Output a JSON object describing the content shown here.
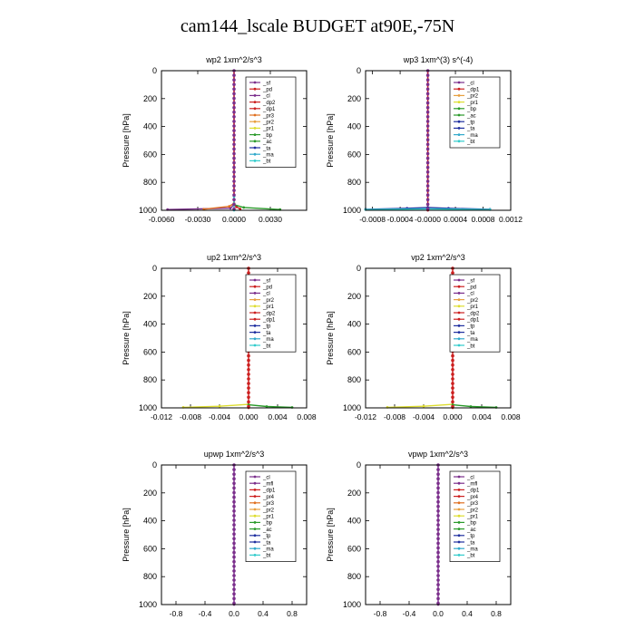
{
  "figure": {
    "title": "cam144_lscale  BUDGET at90E,-75N"
  },
  "chart_data": [
    {
      "type": "line",
      "title": "wp2  1xm^2/s^3",
      "ylabel": "Pressure [hPa]",
      "ylim": [
        0,
        1000
      ],
      "y_reversed": true,
      "xlim": [
        -0.006,
        0.006
      ],
      "xticks": [
        {
          "v": -0.006,
          "label": "-0.0060"
        },
        {
          "v": -0.003,
          "label": "-0.0030"
        },
        {
          "v": 0,
          "label": "0.0000"
        },
        {
          "v": 0.003,
          "label": "0.0030"
        }
      ],
      "yticks": [
        0,
        200,
        400,
        600,
        800,
        1000
      ],
      "legend_position": "top-right",
      "legend": [
        "_sf",
        "_pd",
        "_cl",
        "_dp2",
        "_dp1",
        "_pr3",
        "_pr2",
        "_pr1",
        "_bp",
        "_ac",
        "_ta",
        "_ma",
        "_bt"
      ],
      "series": [
        {
          "name": "_cl",
          "color": "#7b2f8c",
          "points": [
            [
              0,
              0
            ],
            [
              0,
              900
            ],
            [
              0,
              960
            ],
            [
              -0.0003,
              985
            ],
            [
              -0.0055,
              995
            ]
          ]
        },
        {
          "name": "_pd",
          "color": "#cc2020",
          "points": [
            [
              0,
              0
            ],
            [
              0,
              960
            ],
            [
              0.0002,
              975
            ],
            [
              0.0005,
              990
            ]
          ]
        },
        {
          "name": "_dp1",
          "color": "#e07020",
          "points": [
            [
              0,
              950
            ],
            [
              -0.0004,
              972
            ],
            [
              -0.0025,
              992
            ]
          ]
        },
        {
          "name": "_pr1",
          "color": "#2a9a2a",
          "points": [
            [
              0,
              960
            ],
            [
              0.0008,
              980
            ],
            [
              0.0038,
              995
            ]
          ]
        },
        {
          "name": "_bt",
          "color": "#33cccc",
          "points": [
            [
              0,
              900
            ],
            [
              0,
              1000
            ]
          ]
        }
      ]
    },
    {
      "type": "line",
      "title": "wp3  1xm^(3) s^(-4)",
      "ylabel": "Pressure [hPa]",
      "ylim": [
        0,
        1000
      ],
      "y_reversed": true,
      "xlim": [
        -0.0009,
        0.0012
      ],
      "xticks": [
        {
          "v": -0.0008,
          "label": "-0.0008"
        },
        {
          "v": -0.0004,
          "label": "-0.0004"
        },
        {
          "v": 0,
          "label": "-0.0000"
        },
        {
          "v": 0.0004,
          "label": "0.0004"
        },
        {
          "v": 0.0008,
          "label": "0.0008"
        },
        {
          "v": 0.0012,
          "label": "0.0012"
        }
      ],
      "yticks": [
        0,
        200,
        400,
        600,
        800,
        1000
      ],
      "legend_position": "top-right",
      "legend": [
        "_cl",
        "_dp1",
        "_pr2",
        "_pr1",
        "_bp",
        "_ac",
        "_tp",
        "_ta",
        "_ma",
        "_bt"
      ],
      "series": [
        {
          "name": "_cl",
          "color": "#7b2f8c",
          "points": [
            [
              0,
              0
            ],
            [
              0,
              1000
            ]
          ]
        },
        {
          "name": "_dp1",
          "color": "#cc2020",
          "points": [
            [
              0,
              0
            ],
            [
              0,
              1000
            ]
          ]
        },
        {
          "name": "_tp",
          "color": "#2030a0",
          "points": [
            [
              -0.0009,
              993
            ],
            [
              -0.0003,
              986
            ],
            [
              0,
              980
            ],
            [
              0.0003,
              986
            ],
            [
              0.0009,
              993
            ]
          ]
        },
        {
          "name": "_bt",
          "color": "#33cccc",
          "points": [
            [
              -0.0009,
              995
            ],
            [
              0,
              990
            ],
            [
              0.0009,
              995
            ]
          ]
        }
      ]
    },
    {
      "type": "line",
      "title": "up2   1xm^2/s^3",
      "ylabel": "Pressure [hPa]",
      "ylim": [
        0,
        1000
      ],
      "y_reversed": true,
      "xlim": [
        -0.012,
        0.008
      ],
      "xticks": [
        {
          "v": -0.012,
          "label": "-0.012"
        },
        {
          "v": -0.008,
          "label": "-0.008"
        },
        {
          "v": -0.004,
          "label": "-0.004"
        },
        {
          "v": 0,
          "label": "0.000"
        },
        {
          "v": 0.004,
          "label": "0.004"
        },
        {
          "v": 0.008,
          "label": "0.008"
        }
      ],
      "yticks": [
        0,
        200,
        400,
        600,
        800,
        1000
      ],
      "legend_position": "top-right",
      "legend": [
        "_sf",
        "_pd",
        "_cl",
        "_pr2",
        "_pr1",
        "_dp2",
        "_dp1",
        "_tp",
        "_ta",
        "_ma",
        "_bt"
      ],
      "series": [
        {
          "name": "_pd",
          "color": "#cc2020",
          "points": [
            [
              0,
              0
            ],
            [
              0,
              1000
            ]
          ]
        },
        {
          "name": "_pr2",
          "color": "#dddd30",
          "points": [
            [
              0,
              975
            ],
            [
              -0.004,
              988
            ],
            [
              -0.009,
              996
            ]
          ]
        },
        {
          "name": "_dp2",
          "color": "#2a9a2a",
          "points": [
            [
              0,
              978
            ],
            [
              0.0025,
              990
            ],
            [
              0.006,
              997
            ]
          ]
        }
      ]
    },
    {
      "type": "line",
      "title": "vp2   1xm^2/s^3",
      "ylabel": "Pressure [hPa]",
      "ylim": [
        0,
        1000
      ],
      "y_reversed": true,
      "xlim": [
        -0.012,
        0.008
      ],
      "xticks": [
        {
          "v": -0.012,
          "label": "-0.012"
        },
        {
          "v": -0.008,
          "label": "-0.008"
        },
        {
          "v": -0.004,
          "label": "-0.004"
        },
        {
          "v": 0,
          "label": "0.000"
        },
        {
          "v": 0.004,
          "label": "0.004"
        },
        {
          "v": 0.008,
          "label": "0.008"
        }
      ],
      "yticks": [
        0,
        200,
        400,
        600,
        800,
        1000
      ],
      "legend_position": "top-right",
      "legend": [
        "_sf",
        "_pd",
        "_cl",
        "_pr2",
        "_pr1",
        "_dp2",
        "_dp1",
        "_tp",
        "_ta",
        "_ma",
        "_bt"
      ],
      "series": [
        {
          "name": "_pd",
          "color": "#cc2020",
          "points": [
            [
              0,
              0
            ],
            [
              0,
              1000
            ]
          ]
        },
        {
          "name": "_pr2",
          "color": "#dddd30",
          "points": [
            [
              0,
              975
            ],
            [
              -0.004,
              988
            ],
            [
              -0.009,
              996
            ]
          ]
        },
        {
          "name": "_dp2",
          "color": "#2a9a2a",
          "points": [
            [
              0,
              978
            ],
            [
              0.0025,
              990
            ],
            [
              0.006,
              997
            ]
          ]
        }
      ]
    },
    {
      "type": "line",
      "title": "upwp   1xm^2/s^3",
      "ylabel": "Pressure [hPa]",
      "ylim": [
        0,
        1000
      ],
      "y_reversed": true,
      "xlim": [
        -1.0,
        1.0
      ],
      "xticks": [
        {
          "v": -0.8,
          "label": "-0.8"
        },
        {
          "v": -0.4,
          "label": "-0.4"
        },
        {
          "v": 0,
          "label": "0.0"
        },
        {
          "v": 0.4,
          "label": "0.4"
        },
        {
          "v": 0.8,
          "label": "0.8"
        }
      ],
      "yticks": [
        0,
        200,
        400,
        600,
        800,
        1000
      ],
      "legend_position": "top-right",
      "legend": [
        "_cl",
        "_mfl",
        "_dp1",
        "_pr4",
        "_pr3",
        "_pr2",
        "_pr1",
        "_bp",
        "_ac",
        "_tp",
        "_ta",
        "_ma",
        "_bt"
      ],
      "series": [
        {
          "name": "_cl",
          "color": "#7b2f8c",
          "points": [
            [
              0,
              0
            ],
            [
              0,
              1000
            ]
          ]
        }
      ]
    },
    {
      "type": "line",
      "title": "vpwp   1xm^2/s^3",
      "ylabel": "Pressure [hPa]",
      "ylim": [
        0,
        1000
      ],
      "y_reversed": true,
      "xlim": [
        -1.0,
        1.0
      ],
      "xticks": [
        {
          "v": -0.8,
          "label": "-0.8"
        },
        {
          "v": -0.4,
          "label": "-0.4"
        },
        {
          "v": 0,
          "label": "0.0"
        },
        {
          "v": 0.4,
          "label": "0.4"
        },
        {
          "v": 0.8,
          "label": "0.8"
        }
      ],
      "yticks": [
        0,
        200,
        400,
        600,
        800,
        1000
      ],
      "legend_position": "top-right",
      "legend": [
        "_cl",
        "_mfl",
        "_dp1",
        "_pr4",
        "_pr3",
        "_pr2",
        "_pr1",
        "_bp",
        "_ac",
        "_tp",
        "_ta",
        "_ma",
        "_bt"
      ],
      "series": [
        {
          "name": "_cl",
          "color": "#7b2f8c",
          "points": [
            [
              0,
              0
            ],
            [
              0,
              1000
            ]
          ]
        }
      ]
    }
  ],
  "legend_colors": {
    "_sf": "#7b2f8c",
    "_cl": "#7b2f8c",
    "_mfl": "#7b2f8c",
    "_pd": "#cc2020",
    "_dp1": "#cc2020",
    "_dp2": "#cc2020",
    "_pr4": "#cc2020",
    "_pr3": "#e07020",
    "_pr2": "#e8a040",
    "_pr1": "#dddd30",
    "_bp": "#2a9a2a",
    "_ac": "#2a9a2a",
    "_tp": "#2030a0",
    "_ta": "#2030a0",
    "_ma": "#33aacc",
    "_bt": "#33cccc"
  }
}
